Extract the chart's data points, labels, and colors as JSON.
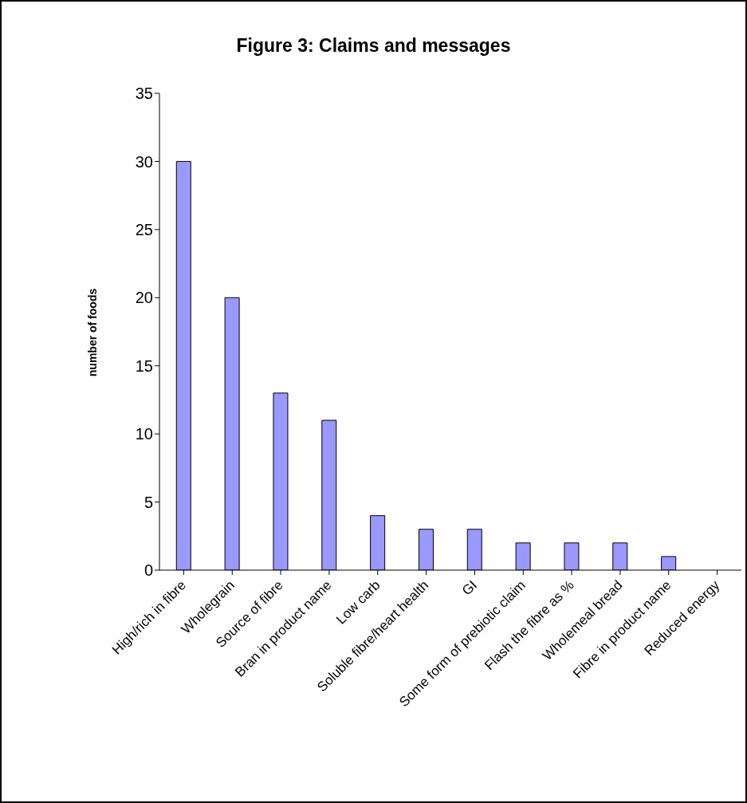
{
  "chart_data": {
    "type": "bar",
    "title": "Figure 3: Claims and messages",
    "ylabel": "number of foods",
    "categories": [
      "High/rich in fibre",
      "Wholegrain",
      "Source of fibre",
      "Bran in product name",
      "Low carb",
      "Soluble fibre/heart health",
      "GI",
      "Some form of prebiotic claim",
      "Flash the fibre as %",
      "Wholemeal bread",
      "Fibre in product name",
      "Reduced energy"
    ],
    "values": [
      30,
      20,
      13,
      11,
      4,
      3,
      3,
      2,
      2,
      2,
      1,
      0
    ],
    "color": "#9999ff",
    "ylim": [
      0,
      35
    ],
    "yticks": [
      0,
      5,
      10,
      15,
      20,
      25,
      30,
      35
    ],
    "grid": false
  }
}
